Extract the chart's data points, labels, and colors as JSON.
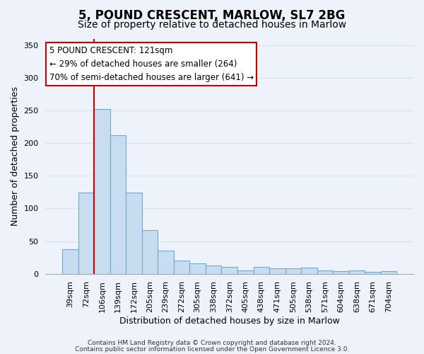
{
  "title": "5, POUND CRESCENT, MARLOW, SL7 2BG",
  "subtitle": "Size of property relative to detached houses in Marlow",
  "xlabel": "Distribution of detached houses by size in Marlow",
  "ylabel": "Number of detached properties",
  "bar_labels": [
    "39sqm",
    "72sqm",
    "106sqm",
    "139sqm",
    "172sqm",
    "205sqm",
    "239sqm",
    "272sqm",
    "305sqm",
    "338sqm",
    "372sqm",
    "405sqm",
    "438sqm",
    "471sqm",
    "505sqm",
    "538sqm",
    "571sqm",
    "604sqm",
    "638sqm",
    "671sqm",
    "704sqm"
  ],
  "bar_values": [
    38,
    124,
    252,
    212,
    124,
    67,
    35,
    20,
    16,
    13,
    10,
    5,
    10,
    8,
    8,
    9,
    5,
    4,
    5,
    3,
    4
  ],
  "bar_color": "#c9ddf0",
  "bar_edgecolor": "#6aaad4",
  "vline_x_index": 2,
  "vline_color": "#cc0000",
  "ylim": [
    0,
    360
  ],
  "yticks": [
    0,
    50,
    100,
    150,
    200,
    250,
    300,
    350
  ],
  "annotation_text": "5 POUND CRESCENT: 121sqm\n← 29% of detached houses are smaller (264)\n70% of semi-detached houses are larger (641) →",
  "annotation_box_edgecolor": "#cc0000",
  "footer_line1": "Contains HM Land Registry data © Crown copyright and database right 2024.",
  "footer_line2": "Contains public sector information licensed under the Open Government Licence 3.0.",
  "background_color": "#eef2fa",
  "grid_color": "#d8e4f0",
  "title_fontsize": 12,
  "subtitle_fontsize": 10,
  "tick_fontsize": 8,
  "ylabel_fontsize": 9,
  "xlabel_fontsize": 9,
  "footer_fontsize": 6.5
}
